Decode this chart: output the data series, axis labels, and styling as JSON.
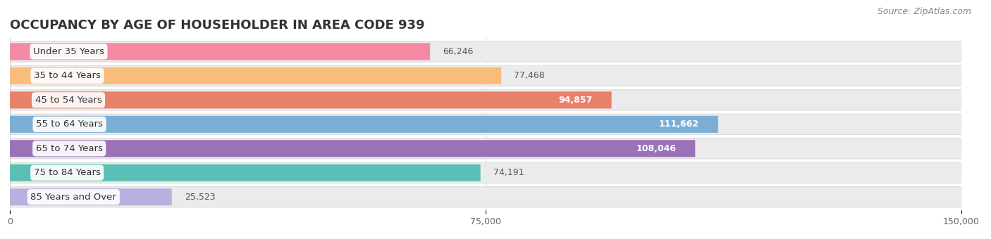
{
  "title": "OCCUPANCY BY AGE OF HOUSEHOLDER IN AREA CODE 939",
  "source": "Source: ZipAtlas.com",
  "categories": [
    "Under 35 Years",
    "35 to 44 Years",
    "45 to 54 Years",
    "55 to 64 Years",
    "65 to 74 Years",
    "75 to 84 Years",
    "85 Years and Over"
  ],
  "values": [
    66246,
    77468,
    94857,
    111662,
    108046,
    74191,
    25523
  ],
  "bar_colors": [
    "#F589A3",
    "#F9BC7A",
    "#E8806A",
    "#7BAED6",
    "#9B72B8",
    "#5BBFB5",
    "#B8B0E0"
  ],
  "val_text_colors": [
    "#555555",
    "#555555",
    "#FFFFFF",
    "#FFFFFF",
    "#FFFFFF",
    "#555555",
    "#555555"
  ],
  "bar_bg_color": "#EBEBEB",
  "background_color": "#FFFFFF",
  "xlim": [
    0,
    150000
  ],
  "xtick_labels": [
    "0",
    "75,000",
    "150,000"
  ],
  "xtick_vals": [
    0,
    75000,
    150000
  ],
  "title_fontsize": 13,
  "label_fontsize": 9.5,
  "value_fontsize": 9,
  "source_fontsize": 9
}
